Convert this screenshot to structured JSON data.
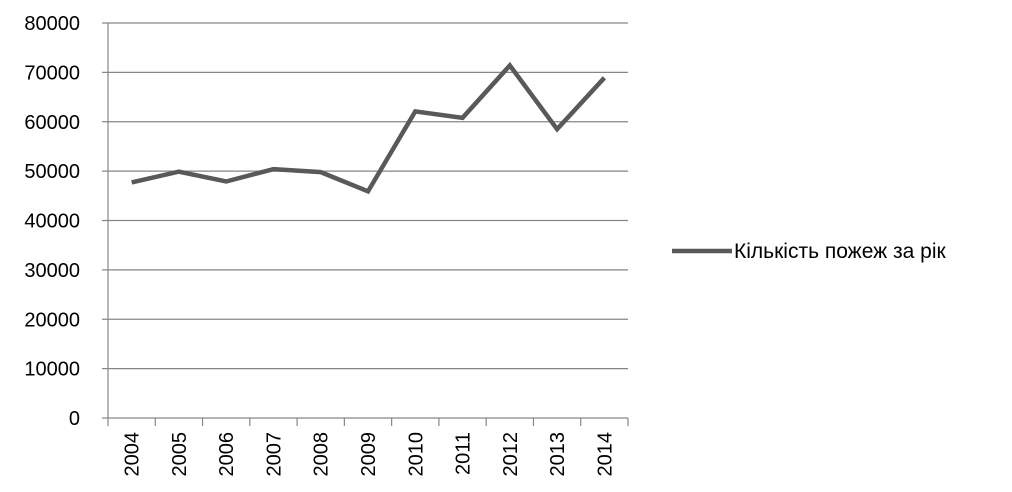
{
  "chart_data": {
    "type": "line",
    "x": [
      "2004",
      "2005",
      "2006",
      "2007",
      "2008",
      "2009",
      "2010",
      "2011",
      "2012",
      "2013",
      "2014"
    ],
    "series": [
      {
        "name": "Кількість пожеж за рік",
        "values": [
          47700,
          49900,
          47900,
          50400,
          49800,
          45900,
          62100,
          60800,
          71400,
          58500,
          68900
        ],
        "color": "#595959"
      }
    ],
    "ylim": [
      0,
      80000
    ],
    "yticks": [
      "0",
      "10000",
      "20000",
      "30000",
      "40000",
      "50000",
      "60000",
      "70000",
      "80000"
    ],
    "grid": true,
    "legend": "right",
    "colors": {
      "gridline": "#868686",
      "axis": "#868686",
      "text": "#000000"
    }
  }
}
